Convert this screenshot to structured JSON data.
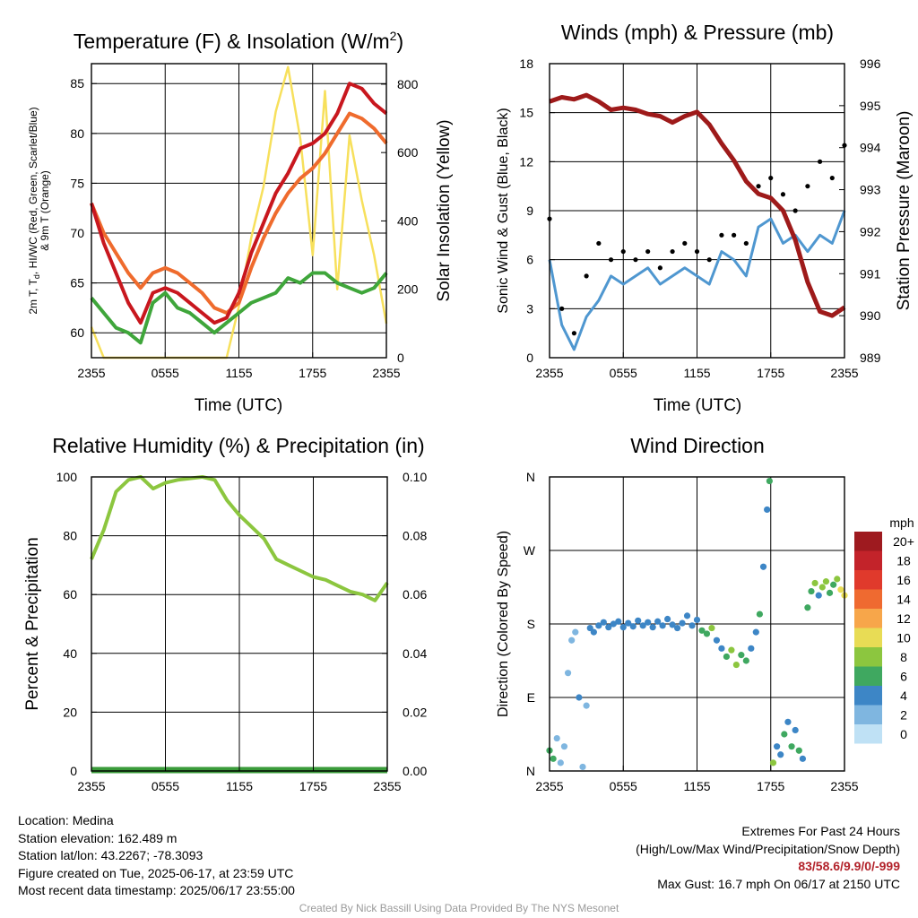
{
  "time_ticks": [
    "2355",
    "0555",
    "1155",
    "1755",
    "2355"
  ],
  "panels": {
    "temperature": {
      "title": "Temperature (F) & Insolation (W/m",
      "title_sup": "2",
      "title_close": ")",
      "ylabel_left_line1": "2m T, T",
      "ylabel_left_sub": "d",
      "ylabel_left_line1_rest": ", HI/WC (Red, Green, Scarlet/Blue)",
      "ylabel_left_line2": "& 9m T (Orange)",
      "ylabel_right": "Solar Insolation (Yellow)",
      "xlabel": "Time (UTC)",
      "yticks_left": [
        "60",
        "65",
        "70",
        "75",
        "80",
        "85"
      ],
      "yticks_right": [
        "0",
        "200",
        "400",
        "600",
        "800"
      ]
    },
    "winds": {
      "title": "Winds (mph) & Pressure (mb)",
      "ylabel_left": "Sonic Wind & Gust (Blue, Black)",
      "ylabel_right": "Station Pressure (Maroon)",
      "xlabel": "Time (UTC)",
      "yticks_left": [
        "0",
        "3",
        "6",
        "9",
        "12",
        "15",
        "18"
      ],
      "yticks_right": [
        "989",
        "990",
        "991",
        "992",
        "993",
        "994",
        "995",
        "996"
      ]
    },
    "humidity": {
      "title": "Relative Humidity (%) & Precipitation (in)",
      "ylabel_left": "Percent & Precipitation",
      "yticks_left": [
        "0",
        "20",
        "40",
        "60",
        "80",
        "100"
      ],
      "yticks_right": [
        "0.00",
        "0.02",
        "0.04",
        "0.06",
        "0.08",
        "0.10"
      ]
    },
    "direction": {
      "title": "Wind Direction",
      "ylabel_left": "Direction (Colored By Speed)",
      "yticks_left": [
        "N",
        "E",
        "S",
        "W",
        "N"
      ],
      "legend_title": "mph",
      "legend_labels": [
        "20+",
        "18",
        "16",
        "14",
        "12",
        "10",
        "8",
        "6",
        "4",
        "2",
        "0"
      ],
      "legend_colors": [
        "#9e1a1f",
        "#c3232a",
        "#e03a2c",
        "#ef6a30",
        "#f7a64a",
        "#e8dc55",
        "#8cc63f",
        "#3fa860",
        "#3d86c6",
        "#7fb6e0",
        "#bfe1f5"
      ]
    }
  },
  "chart_data": [
    {
      "type": "line",
      "title": "Temperature (F) & Insolation (W/m2)",
      "xlabel": "Time (UTC)",
      "ylabel": "2m T, Td, HI/WC (Red, Green, Scarlet/Blue) & 9m T (Orange)",
      "ylabel_right": "Solar Insolation (Yellow)",
      "x_hours": [
        0,
        1,
        2,
        3,
        4,
        5,
        6,
        7,
        8,
        9,
        10,
        11,
        12,
        13,
        14,
        15,
        16,
        17,
        18,
        19,
        20,
        21,
        22,
        23,
        24
      ],
      "ylim": [
        57.5,
        87
      ],
      "ylim_right": [
        0,
        860
      ],
      "series": [
        {
          "name": "2m T",
          "color": "#c8171e",
          "axis": "left",
          "values": [
            73,
            69,
            66,
            63,
            61,
            64,
            64.5,
            64,
            63,
            62,
            61,
            61.5,
            64,
            68,
            71,
            74,
            76,
            78.5,
            79,
            80,
            82,
            85,
            84.5,
            83,
            82
          ]
        },
        {
          "name": "9m T",
          "color": "#ef6b2d",
          "axis": "left",
          "values": [
            73,
            70,
            68,
            66,
            64.5,
            66,
            66.5,
            66,
            65,
            64,
            62.5,
            62,
            63,
            66.5,
            69.5,
            72,
            74,
            75.5,
            76.5,
            78,
            80,
            82,
            81.5,
            80.5,
            79
          ]
        },
        {
          "name": "Td",
          "color": "#3fa63b",
          "axis": "left",
          "values": [
            63.5,
            62,
            60.5,
            60,
            59,
            63,
            64,
            62.5,
            62,
            61,
            60,
            61,
            62,
            63,
            63.5,
            64,
            65.5,
            65,
            66,
            66,
            65,
            64.5,
            64,
            64.5,
            66
          ]
        },
        {
          "name": "Insolation",
          "color": "#f7e05c",
          "axis": "right",
          "values": [
            90,
            0,
            0,
            0,
            0,
            0,
            0,
            0,
            0,
            0,
            0,
            0,
            150,
            350,
            500,
            720,
            850,
            640,
            300,
            780,
            200,
            650,
            460,
            300,
            100
          ]
        }
      ]
    },
    {
      "type": "line",
      "title": "Winds (mph) & Pressure (mb)",
      "xlabel": "Time (UTC)",
      "ylabel": "Sonic Wind & Gust (Blue, Black)",
      "ylabel_right": "Station Pressure (Maroon)",
      "x_hours": [
        0,
        1,
        2,
        3,
        4,
        5,
        6,
        7,
        8,
        9,
        10,
        11,
        12,
        13,
        14,
        15,
        16,
        17,
        18,
        19,
        20,
        21,
        22,
        23,
        24
      ],
      "ylim": [
        0,
        18
      ],
      "ylim_right": [
        989,
        996
      ],
      "series": [
        {
          "name": "Sonic Wind",
          "color": "#4f97d0",
          "axis": "left",
          "values": [
            6,
            2,
            0.5,
            2.5,
            3.5,
            5,
            4.5,
            5,
            5.5,
            4.5,
            5,
            5.5,
            5,
            4.5,
            6.5,
            6,
            5,
            8,
            8.5,
            7,
            7.5,
            6.5,
            7.5,
            7,
            9
          ]
        },
        {
          "name": "Gust",
          "color": "#000000",
          "axis": "left",
          "values": [
            8.5,
            3,
            1.5,
            5,
            7,
            6,
            6.5,
            6,
            6.5,
            5.5,
            6.5,
            7,
            6.5,
            6,
            7.5,
            7.5,
            7,
            10.5,
            11,
            10,
            9,
            10.5,
            12,
            11,
            13
          ]
        },
        {
          "name": "Station Pressure",
          "color": "#9e1a1a",
          "axis": "right",
          "values": [
            995.1,
            995.2,
            995.15,
            995.25,
            995.1,
            994.9,
            994.95,
            994.9,
            994.8,
            994.75,
            994.6,
            994.75,
            994.85,
            994.55,
            994.1,
            993.7,
            993.2,
            992.9,
            992.8,
            992.5,
            991.8,
            990.8,
            990.1,
            990.0,
            990.2
          ]
        }
      ]
    },
    {
      "type": "line",
      "title": "Relative Humidity (%) & Precipitation (in)",
      "ylabel": "Percent & Precipitation",
      "x_hours": [
        0,
        1,
        2,
        3,
        4,
        5,
        6,
        7,
        8,
        9,
        10,
        11,
        12,
        13,
        14,
        15,
        16,
        17,
        18,
        19,
        20,
        21,
        22,
        23,
        24
      ],
      "ylim": [
        0,
        100
      ],
      "ylim_right": [
        0,
        0.1
      ],
      "series": [
        {
          "name": "Relative Humidity",
          "color": "#8cc63f",
          "axis": "left",
          "values": [
            72,
            82,
            95,
            99,
            100,
            96,
            98,
            99,
            99.5,
            100,
            99,
            92,
            87,
            83,
            79,
            72,
            70,
            68,
            66,
            65,
            63,
            61,
            60,
            58,
            64
          ]
        },
        {
          "name": "Precipitation",
          "color": "#3a9b3a",
          "axis": "right",
          "values": [
            0,
            0,
            0,
            0,
            0,
            0,
            0,
            0,
            0,
            0,
            0,
            0,
            0,
            0,
            0,
            0,
            0,
            0,
            0,
            0,
            0,
            0,
            0,
            0,
            0
          ]
        }
      ]
    },
    {
      "type": "scatter",
      "title": "Wind Direction",
      "ylabel": "Direction (Colored By Speed)",
      "y_categories": [
        "N",
        "E",
        "S",
        "W",
        "N"
      ],
      "ylim": [
        0,
        360
      ],
      "legend_title": "mph",
      "points": [
        {
          "hour": 0.0,
          "dir": 25,
          "speed": 6
        },
        {
          "hour": 0.3,
          "dir": 15,
          "speed": 5
        },
        {
          "hour": 0.6,
          "dir": 40,
          "speed": 2
        },
        {
          "hour": 0.9,
          "dir": 10,
          "speed": 2
        },
        {
          "hour": 1.2,
          "dir": 30,
          "speed": 1
        },
        {
          "hour": 1.5,
          "dir": 120,
          "speed": 1
        },
        {
          "hour": 1.8,
          "dir": 160,
          "speed": 1
        },
        {
          "hour": 2.1,
          "dir": 170,
          "speed": 1
        },
        {
          "hour": 2.4,
          "dir": 90,
          "speed": 3
        },
        {
          "hour": 2.7,
          "dir": 5,
          "speed": 1
        },
        {
          "hour": 3.0,
          "dir": 80,
          "speed": 2
        },
        {
          "hour": 3.3,
          "dir": 175,
          "speed": 3
        },
        {
          "hour": 3.6,
          "dir": 170,
          "speed": 4
        },
        {
          "hour": 4.0,
          "dir": 178,
          "speed": 4
        },
        {
          "hour": 4.4,
          "dir": 182,
          "speed": 4
        },
        {
          "hour": 4.8,
          "dir": 176,
          "speed": 4
        },
        {
          "hour": 5.2,
          "dir": 180,
          "speed": 4
        },
        {
          "hour": 5.6,
          "dir": 183,
          "speed": 4
        },
        {
          "hour": 6.0,
          "dir": 176,
          "speed": 4
        },
        {
          "hour": 6.4,
          "dir": 181,
          "speed": 4
        },
        {
          "hour": 6.8,
          "dir": 177,
          "speed": 4
        },
        {
          "hour": 7.2,
          "dir": 184,
          "speed": 4
        },
        {
          "hour": 7.6,
          "dir": 178,
          "speed": 4
        },
        {
          "hour": 8.0,
          "dir": 182,
          "speed": 4
        },
        {
          "hour": 8.4,
          "dir": 176,
          "speed": 4
        },
        {
          "hour": 8.8,
          "dir": 183,
          "speed": 4
        },
        {
          "hour": 9.2,
          "dir": 178,
          "speed": 4
        },
        {
          "hour": 9.6,
          "dir": 186,
          "speed": 4
        },
        {
          "hour": 10.0,
          "dir": 179,
          "speed": 4
        },
        {
          "hour": 10.4,
          "dir": 175,
          "speed": 4
        },
        {
          "hour": 10.8,
          "dir": 181,
          "speed": 4
        },
        {
          "hour": 11.2,
          "dir": 190,
          "speed": 4
        },
        {
          "hour": 11.6,
          "dir": 178,
          "speed": 4
        },
        {
          "hour": 12.0,
          "dir": 185,
          "speed": 4
        },
        {
          "hour": 12.4,
          "dir": 172,
          "speed": 5
        },
        {
          "hour": 12.8,
          "dir": 168,
          "speed": 6
        },
        {
          "hour": 13.2,
          "dir": 175,
          "speed": 7
        },
        {
          "hour": 13.6,
          "dir": 160,
          "speed": 4
        },
        {
          "hour": 14.0,
          "dir": 150,
          "speed": 4
        },
        {
          "hour": 14.4,
          "dir": 140,
          "speed": 5
        },
        {
          "hour": 14.8,
          "dir": 148,
          "speed": 7
        },
        {
          "hour": 15.2,
          "dir": 130,
          "speed": 8
        },
        {
          "hour": 15.6,
          "dir": 142,
          "speed": 6
        },
        {
          "hour": 16.0,
          "dir": 135,
          "speed": 6
        },
        {
          "hour": 16.4,
          "dir": 150,
          "speed": 4
        },
        {
          "hour": 16.8,
          "dir": 170,
          "speed": 3
        },
        {
          "hour": 17.1,
          "dir": 192,
          "speed": 6
        },
        {
          "hour": 17.4,
          "dir": 250,
          "speed": 3
        },
        {
          "hour": 17.7,
          "dir": 320,
          "speed": 4
        },
        {
          "hour": 17.9,
          "dir": 355,
          "speed": 6
        },
        {
          "hour": 18.2,
          "dir": 10,
          "speed": 8
        },
        {
          "hour": 18.5,
          "dir": 30,
          "speed": 4
        },
        {
          "hour": 18.8,
          "dir": 20,
          "speed": 4
        },
        {
          "hour": 19.1,
          "dir": 45,
          "speed": 5
        },
        {
          "hour": 19.4,
          "dir": 60,
          "speed": 4
        },
        {
          "hour": 19.7,
          "dir": 30,
          "speed": 6
        },
        {
          "hour": 20.0,
          "dir": 50,
          "speed": 4
        },
        {
          "hour": 20.3,
          "dir": 25,
          "speed": 5
        },
        {
          "hour": 20.6,
          "dir": 15,
          "speed": 4
        },
        {
          "hour": 21.0,
          "dir": 200,
          "speed": 6
        },
        {
          "hour": 21.3,
          "dir": 220,
          "speed": 6
        },
        {
          "hour": 21.6,
          "dir": 230,
          "speed": 8
        },
        {
          "hour": 21.9,
          "dir": 215,
          "speed": 4
        },
        {
          "hour": 22.2,
          "dir": 225,
          "speed": 8
        },
        {
          "hour": 22.5,
          "dir": 232,
          "speed": 7
        },
        {
          "hour": 22.8,
          "dir": 218,
          "speed": 6
        },
        {
          "hour": 23.1,
          "dir": 228,
          "speed": 5
        },
        {
          "hour": 23.4,
          "dir": 235,
          "speed": 8
        },
        {
          "hour": 23.7,
          "dir": 222,
          "speed": 9
        },
        {
          "hour": 24.0,
          "dir": 215,
          "speed": 10
        }
      ]
    }
  ],
  "info": {
    "location": "Location: Medina",
    "elevation": "Station elevation: 162.489 m",
    "latlon": "Station lat/lon: 43.2267; -78.3093",
    "created": "Figure created on Tue, 2025-06-17, at 23:59 UTC",
    "recent": "Most recent data timestamp: 2025/06/17 23:55:00",
    "extremes_title": "Extremes For Past 24 Hours",
    "extremes_fields": "(High/Low/Max Wind/Precipitation/Snow Depth)",
    "extremes_values": "83/58.6/9.9/0/-999",
    "max_gust": "Max Gust: 16.7 mph On 06/17 at 2150 UTC"
  },
  "credit": "Created By Nick Bassill Using Data Provided By The NYS Mesonet"
}
